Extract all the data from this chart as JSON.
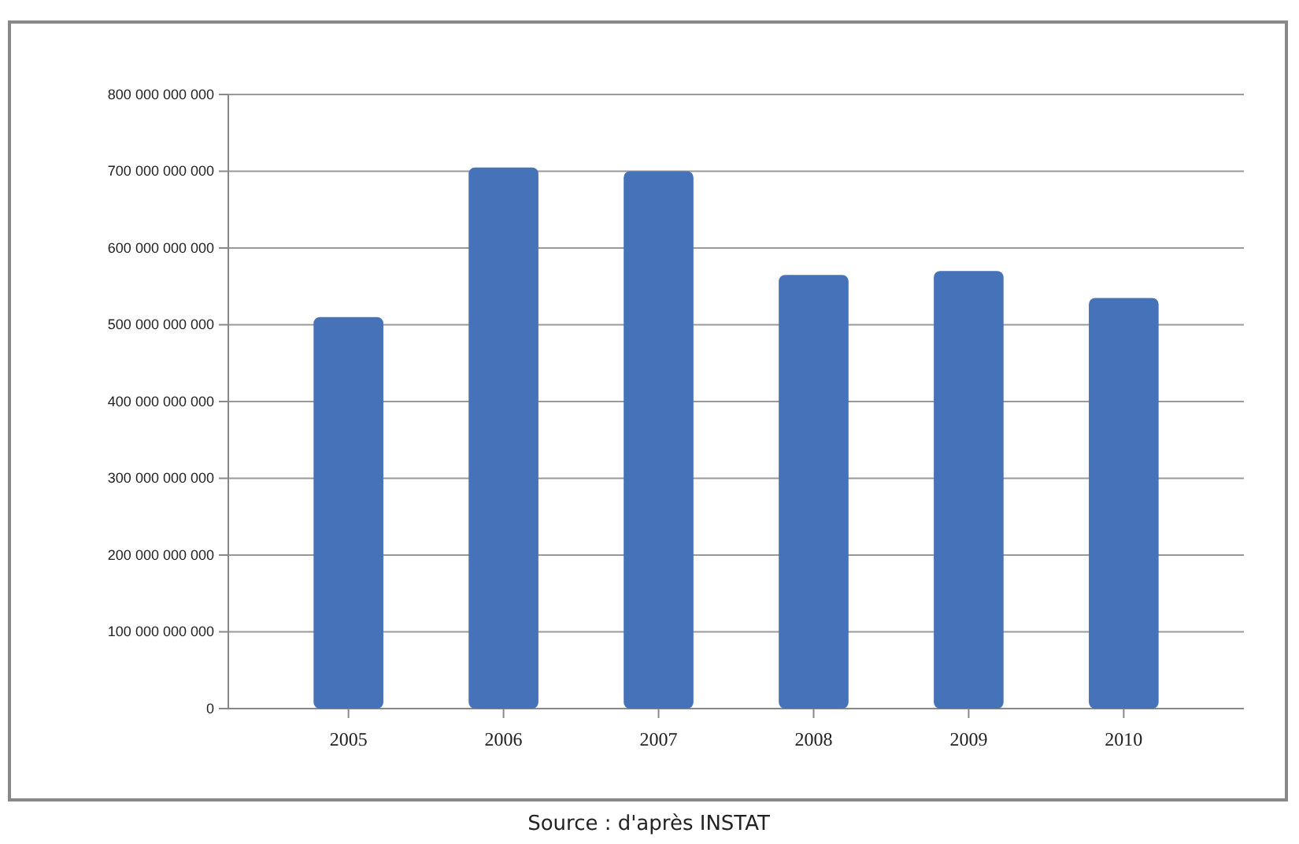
{
  "chart_data": {
    "type": "bar",
    "categories": [
      "2005",
      "2006",
      "2007",
      "2008",
      "2009",
      "2010"
    ],
    "values": [
      510000000000,
      705000000000,
      700000000000,
      565000000000,
      570000000000,
      535000000000
    ],
    "color": "#4572b8",
    "ylim": [
      0,
      800000000000
    ],
    "yticks": [
      {
        "value": 0,
        "label": "0"
      },
      {
        "value": 100000000000,
        "label": "100 000 000 000"
      },
      {
        "value": 200000000000,
        "label": "200 000 000 000"
      },
      {
        "value": 300000000000,
        "label": "300 000 000 000"
      },
      {
        "value": 400000000000,
        "label": "400 000 000 000"
      },
      {
        "value": 500000000000,
        "label": "500 000 000 000"
      },
      {
        "value": 600000000000,
        "label": "600 000 000 000"
      },
      {
        "value": 700000000000,
        "label": "700 000 000 000"
      },
      {
        "value": 800000000000,
        "label": "800 000 000 000"
      }
    ],
    "grid": true,
    "annotations": [
      "Source : d'après INSTAT"
    ]
  }
}
